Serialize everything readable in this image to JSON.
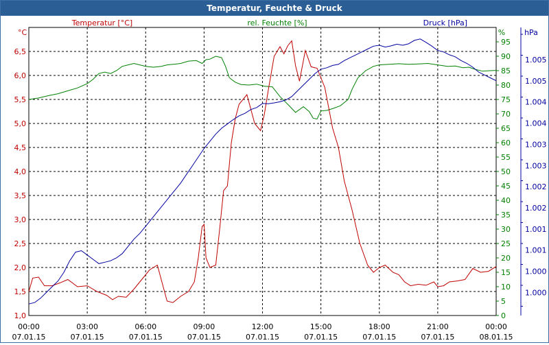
{
  "window": {
    "title": "Temperatur, Feuchte & Druck"
  },
  "colors": {
    "temperature": "#c00000",
    "humidity": "#008000",
    "pressure": "#0000a0",
    "axis": "#000000",
    "grid": "#000000",
    "titlebar": "#2a5e95"
  },
  "chart_data": {
    "type": "line",
    "title": "Temperatur, Feuchte & Druck",
    "grid": true,
    "x_ticks": [
      {
        "time": "00:00",
        "date": "07.01.15"
      },
      {
        "time": "03:00",
        "date": "07.01.15"
      },
      {
        "time": "06:00",
        "date": "07.01.15"
      },
      {
        "time": "09:00",
        "date": "07.01.15"
      },
      {
        "time": "12:00",
        "date": "07.01.15"
      },
      {
        "time": "15:00",
        "date": "07.01.15"
      },
      {
        "time": "18:00",
        "date": "07.01.15"
      },
      {
        "time": "21:00",
        "date": "07.01.15"
      },
      {
        "time": "00:00",
        "date": "08.01.15"
      }
    ],
    "xlim": [
      0,
      24
    ],
    "axes": {
      "temperature": {
        "unit": "°C",
        "label": "Temperatur [°C]",
        "ylim": [
          1.0,
          7.0
        ],
        "ticks": [
          "1,0",
          "1,5",
          "2,0",
          "2,5",
          "3,0",
          "3,5",
          "4,0",
          "4,5",
          "5,0",
          "5,5",
          "6,0",
          "6,5"
        ]
      },
      "humidity": {
        "unit": "%",
        "label": "rel. Feuchte [%]",
        "ylim": [
          0,
          100
        ],
        "ticks": [
          "0",
          "5",
          "10",
          "15",
          "20",
          "25",
          "30",
          "35",
          "40",
          "45",
          "50",
          "55",
          "60",
          "65",
          "70",
          "75",
          "80",
          "85",
          "90",
          "95"
        ]
      },
      "pressure": {
        "unit": "hPa",
        "label": "Druck [hPa]",
        "ticks": [
          "1.000",
          "1.000",
          "1.001",
          "1.001",
          "1.002",
          "1.002",
          "1.003",
          "1.003",
          "1.004",
          "1.004",
          "1.005",
          "1.005"
        ]
      }
    },
    "series": [
      {
        "name": "Temperatur [°C]",
        "axis": "temperature",
        "x": [
          0,
          0.2,
          0.5,
          0.8,
          1.2,
          1.6,
          2.0,
          2.5,
          3.0,
          3.5,
          4.0,
          4.3,
          4.6,
          5.0,
          5.4,
          5.8,
          6.2,
          6.6,
          6.9,
          7.1,
          7.4,
          7.8,
          8.2,
          8.5,
          8.7,
          8.9,
          9.0,
          9.1,
          9.3,
          9.6,
          9.8,
          10.0,
          10.2,
          10.4,
          10.6,
          10.8,
          11.2,
          11.6,
          11.9,
          12.1,
          12.3,
          12.6,
          12.9,
          13.1,
          13.3,
          13.5,
          13.7,
          13.9,
          14.2,
          14.5,
          14.8,
          15.2,
          15.6,
          15.9,
          16.2,
          16.6,
          17.0,
          17.4,
          17.7,
          18.0,
          18.3,
          18.7,
          19.0,
          19.3,
          19.6,
          20.0,
          20.4,
          20.8,
          21.0,
          21.3,
          21.6,
          22.0,
          22.4,
          22.8,
          23.2,
          23.6,
          24.0
        ],
        "y": [
          1.5,
          1.78,
          1.8,
          1.62,
          1.62,
          1.68,
          1.75,
          1.6,
          1.62,
          1.5,
          1.42,
          1.33,
          1.4,
          1.38,
          1.55,
          1.75,
          1.95,
          2.05,
          1.6,
          1.3,
          1.27,
          1.4,
          1.5,
          1.7,
          2.2,
          2.85,
          2.9,
          2.2,
          2.0,
          2.05,
          2.8,
          3.6,
          3.7,
          4.6,
          5.1,
          5.4,
          5.6,
          5.0,
          4.85,
          5.2,
          5.7,
          6.4,
          6.6,
          6.45,
          6.62,
          6.72,
          6.2,
          5.88,
          6.52,
          6.18,
          6.15,
          5.75,
          4.9,
          4.5,
          3.8,
          3.2,
          2.5,
          2.05,
          1.9,
          2.0,
          2.05,
          1.9,
          1.85,
          1.7,
          1.62,
          1.65,
          1.63,
          1.7,
          1.6,
          1.62,
          1.7,
          1.72,
          1.75,
          1.98,
          1.9,
          1.92,
          2.02
        ]
      },
      {
        "name": "rel. Feuchte [%]",
        "axis": "humidity",
        "x": [
          0,
          0.5,
          1.0,
          1.5,
          2.0,
          2.5,
          3.0,
          3.3,
          3.6,
          3.9,
          4.2,
          4.5,
          4.8,
          5.1,
          5.4,
          5.7,
          6.0,
          6.4,
          6.8,
          7.1,
          7.4,
          7.8,
          8.2,
          8.6,
          8.9,
          9.1,
          9.3,
          9.6,
          9.9,
          10.1,
          10.3,
          10.6,
          10.9,
          11.3,
          11.7,
          12.1,
          12.5,
          12.9,
          13.3,
          13.7,
          14.1,
          14.4,
          14.6,
          14.8,
          15.0,
          15.3,
          15.6,
          16.0,
          16.4,
          16.6,
          16.9,
          17.3,
          17.7,
          18.0,
          18.5,
          19.0,
          19.5,
          20.0,
          20.5,
          21.0,
          21.5,
          21.9,
          22.3,
          22.6,
          22.9,
          23.3,
          23.7,
          24.0
        ],
        "y": [
          75,
          75.5,
          76.3,
          77,
          78,
          79,
          80.5,
          82,
          84,
          84.5,
          84,
          85,
          86.5,
          87,
          87.5,
          87,
          86.5,
          86.2,
          86.5,
          87,
          87.2,
          87.5,
          88.3,
          88.5,
          87.5,
          88.8,
          89,
          90,
          89.5,
          86.5,
          82.5,
          81,
          80.2,
          80,
          80.3,
          79.6,
          79.4,
          76,
          73.3,
          70.5,
          72.5,
          70.8,
          68.5,
          68.2,
          71,
          71.2,
          71.8,
          72.8,
          75,
          78.5,
          82.5,
          85,
          86.5,
          87,
          87.2,
          87.4,
          87.2,
          87.3,
          87.5,
          87,
          86.5,
          86.6,
          86,
          86.2,
          85.5,
          84.8,
          85,
          85.1
        ]
      },
      {
        "name": "Druck [hPa]",
        "axis": "pressure",
        "note": "relative level, 0 = bottom of plot, 100 = top",
        "x": [
          0,
          0.3,
          0.6,
          0.9,
          1.2,
          1.5,
          1.8,
          2.1,
          2.4,
          2.7,
          3.0,
          3.3,
          3.6,
          3.9,
          4.2,
          4.5,
          4.8,
          5.1,
          5.4,
          5.7,
          6.0,
          6.3,
          6.6,
          6.9,
          7.2,
          7.5,
          7.8,
          8.1,
          8.4,
          8.7,
          9.0,
          9.3,
          9.6,
          9.9,
          10.2,
          10.5,
          10.8,
          11.1,
          11.4,
          11.7,
          12.0,
          12.3,
          12.6,
          12.9,
          13.2,
          13.5,
          13.8,
          14.1,
          14.4,
          14.7,
          15.0,
          15.3,
          15.6,
          15.9,
          16.2,
          16.5,
          16.8,
          17.1,
          17.4,
          17.7,
          18.0,
          18.3,
          18.6,
          18.9,
          19.2,
          19.5,
          19.8,
          20.1,
          20.4,
          20.7,
          21.0,
          21.3,
          21.6,
          21.9,
          22.2,
          22.5,
          22.8,
          23.1,
          23.4,
          23.7,
          24.0
        ],
        "y": [
          4,
          4.5,
          6,
          8,
          10,
          12,
          15,
          19,
          22,
          22.5,
          21,
          19.5,
          18,
          18.5,
          19,
          20,
          21.5,
          24,
          26.5,
          28.5,
          31,
          33.5,
          36,
          38.5,
          41,
          43.5,
          46,
          49,
          52,
          55,
          58,
          60.5,
          63,
          65,
          66.5,
          68,
          69.3,
          70.2,
          71.5,
          72.2,
          73.6,
          73.5,
          73.8,
          74.2,
          74.8,
          76,
          78,
          80,
          82,
          84,
          85.5,
          86,
          86.8,
          87.2,
          88.5,
          89.5,
          90.5,
          91.5,
          92.5,
          93.5,
          93.8,
          93.2,
          93.6,
          94.2,
          93.8,
          94.3,
          95.5,
          96,
          94.8,
          93.5,
          92,
          91.5,
          90.5,
          89.8,
          88.5,
          87.5,
          86.2,
          84.5,
          83.5,
          82.5,
          81.5
        ]
      }
    ]
  }
}
